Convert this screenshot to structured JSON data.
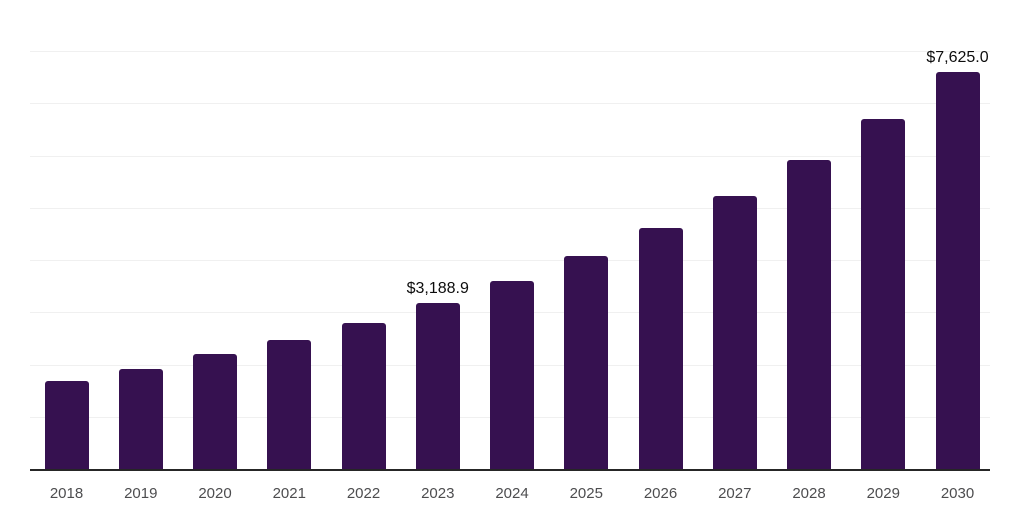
{
  "chart_data": {
    "type": "bar",
    "title": "",
    "xlabel": "",
    "ylabel": "",
    "categories": [
      "2018",
      "2019",
      "2020",
      "2021",
      "2022",
      "2023",
      "2024",
      "2025",
      "2026",
      "2027",
      "2028",
      "2029",
      "2030"
    ],
    "values": [
      1705,
      1935,
      2230,
      2495,
      2820,
      3188.9,
      3610,
      4090,
      4630,
      5245,
      5940,
      6730,
      7625
    ],
    "value_labels": {
      "2023": "$3,188.9",
      "2030": "$7,625.0"
    },
    "ylim": [
      0,
      9000
    ],
    "gridline_step": 1000,
    "grid": "horizontal-only",
    "legend": "none",
    "y_axis_labels": "none",
    "colors": {
      "bar": "#361150",
      "gridline": "#f0f0f0",
      "axis": "#262626",
      "tick_label": "#4d4d4f",
      "annotation": "#0d0d0d",
      "background": "#ffffff"
    }
  }
}
